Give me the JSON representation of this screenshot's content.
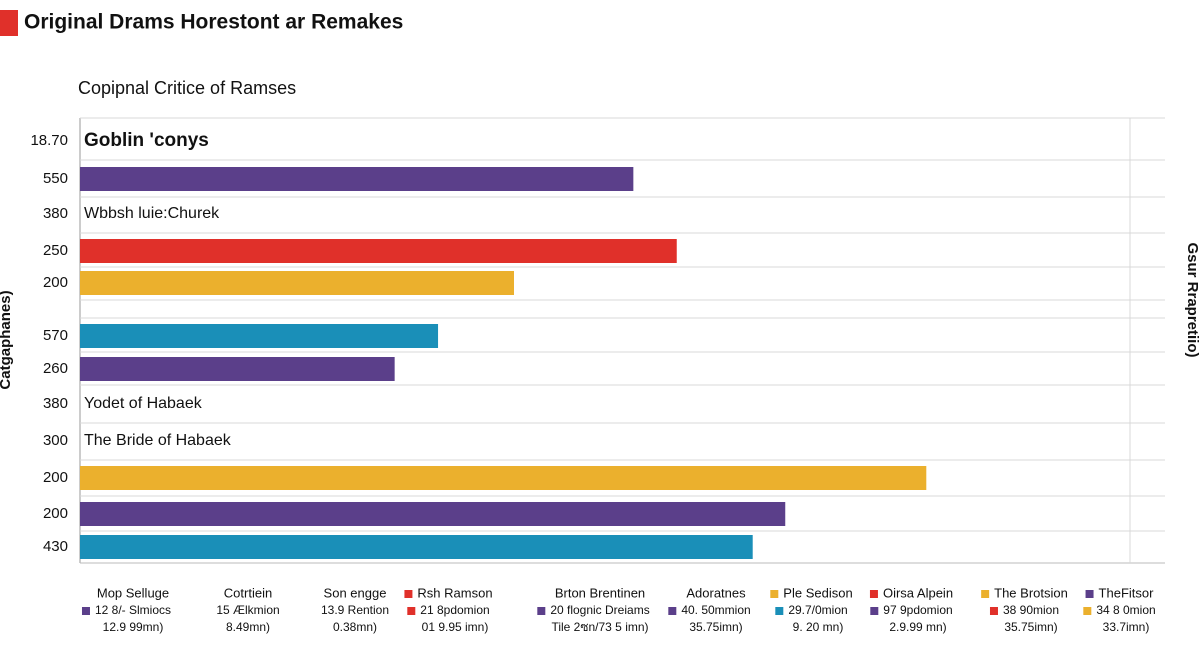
{
  "chart_data": {
    "type": "barh",
    "title": "Original Drams Horestont ar Remakes",
    "subtitle": "Copipnal Critice of Ramses",
    "y_label": "Catgaphanes)",
    "y2_label": "Gsur Rrapretiio)",
    "categories": [
      "18.70",
      "550",
      "380",
      "250",
      "200",
      "570",
      "260",
      "380",
      "300",
      "200",
      "200",
      "430"
    ],
    "row_notes": [
      "Goblin 'conys",
      null,
      "Wbbsh luie:Churek",
      null,
      null,
      null,
      null,
      "Yodet of Habaek",
      "The Bride of Habaek",
      null,
      null,
      null
    ],
    "values": [
      null,
      51,
      null,
      55,
      40,
      33,
      29,
      null,
      null,
      78,
      65,
      62
    ],
    "colors": [
      null,
      "#5b3f8a",
      null,
      "#e0302a",
      "#ebb02d",
      "#1a8fb8",
      "#5b3f8a",
      null,
      null,
      "#ebb02d",
      "#5b3f8a",
      "#1a8fb8"
    ],
    "xlim": [
      0,
      100
    ],
    "grid": true
  },
  "legend_table": [
    {
      "header": "Mop Selluge",
      "lines": [
        {
          "text": "12 8/- Slmiocs",
          "color": "#5b3f8a"
        },
        {
          "text": "12.9 99mn)"
        }
      ]
    },
    {
      "header": "Cotrtiein",
      "lines": [
        {
          "text": "15 Ælkmion"
        },
        {
          "text": "8.49mn)"
        }
      ]
    },
    {
      "header": "Son engge",
      "lines": [
        {
          "text": "13.9 Rention"
        },
        {
          "text": "0.38mn)"
        }
      ]
    },
    {
      "header": "Rsh Ramson",
      "header_color": "#e0302a",
      "lines": [
        {
          "text": "21 8pdomion",
          "color": "#e0302a"
        },
        {
          "text": "01 9.95 imn)"
        }
      ]
    },
    {
      "header": "Brton Brentinen",
      "lines": [
        {
          "text": "20 flognic Dreiams",
          "color": "#5b3f8a"
        },
        {
          "text": "Tile 2ซn/73 5 imn)"
        }
      ]
    },
    {
      "header": "Adoratnes",
      "lines": [
        {
          "text": "40. 50mmion",
          "color": "#5b3f8a"
        },
        {
          "text": "35.75imn)"
        }
      ]
    },
    {
      "header": "Ple Sedison",
      "header_color": "#ebb02d",
      "lines": [
        {
          "text": "29.7/0mion",
          "color": "#1a8fb8"
        },
        {
          "text": "9. 20 mn)"
        }
      ]
    },
    {
      "header": "Oirsa Alpein",
      "header_color": "#e0302a",
      "lines": [
        {
          "text": "97 9pdomion",
          "color": "#5b3f8a"
        },
        {
          "text": "2.9.99 mn)"
        }
      ]
    },
    {
      "header": "The Brotsion",
      "header_color": "#ebb02d",
      "lines": [
        {
          "text": "38 90mion",
          "color": "#e0302a"
        },
        {
          "text": "35.75imn)"
        }
      ]
    },
    {
      "header": "TheFitsor",
      "header_color": "#5b3f8a",
      "lines": [
        {
          "text": "34 8 0mion",
          "color": "#ebb02d"
        },
        {
          "text": "33.7imn)"
        }
      ]
    }
  ]
}
